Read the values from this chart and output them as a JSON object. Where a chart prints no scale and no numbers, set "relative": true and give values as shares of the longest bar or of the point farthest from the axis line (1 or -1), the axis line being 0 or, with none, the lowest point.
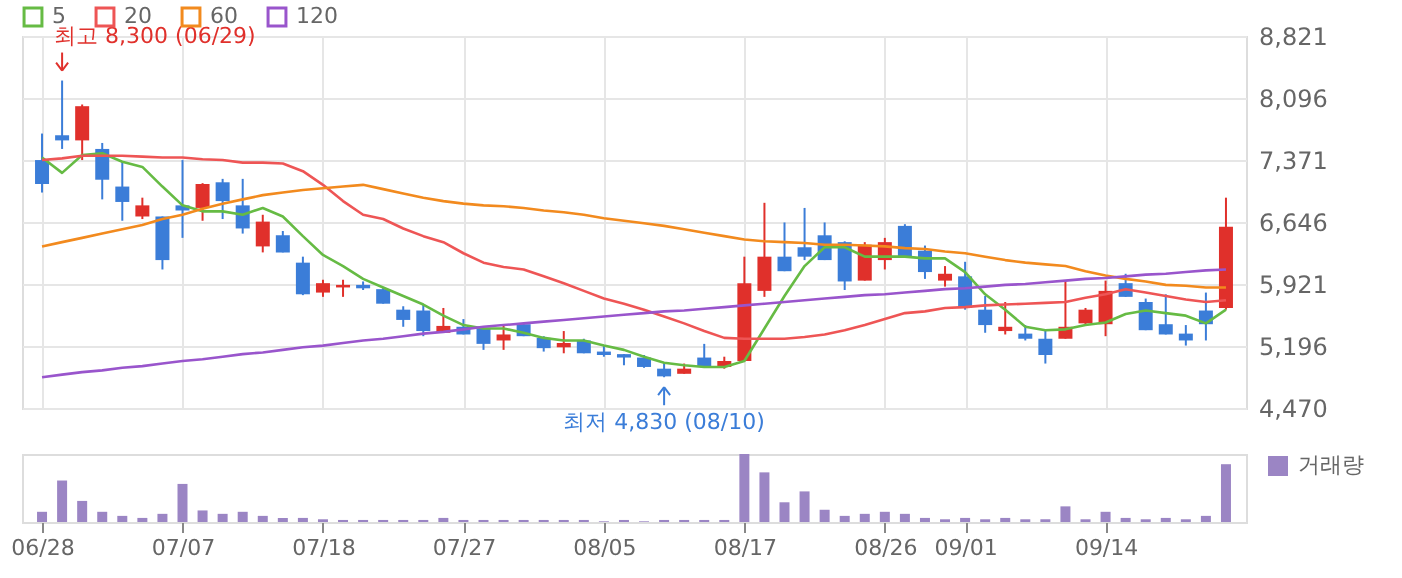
{
  "chart_data": [
    {
      "type": "candlestick",
      "ohlc": [
        [
          7370,
          7680,
          6990,
          7090
        ],
        [
          7660,
          8300,
          7500,
          7600
        ],
        [
          7600,
          8020,
          7370,
          8000
        ],
        [
          7500,
          7570,
          6910,
          7140
        ],
        [
          7060,
          7350,
          6660,
          6880
        ],
        [
          6710,
          6930,
          6680,
          6840
        ],
        [
          6710,
          6710,
          6090,
          6200
        ],
        [
          6840,
          7370,
          6460,
          6780
        ],
        [
          6810,
          7100,
          6660,
          7090
        ],
        [
          7110,
          7150,
          6680,
          6890
        ],
        [
          6840,
          7150,
          6510,
          6570
        ],
        [
          6360,
          6730,
          6290,
          6650
        ],
        [
          6490,
          6540,
          6290,
          6290
        ],
        [
          6170,
          6240,
          5790,
          5800
        ],
        [
          5820,
          5970,
          5770,
          5930
        ],
        [
          5880,
          5970,
          5770,
          5910
        ],
        [
          5910,
          5950,
          5850,
          5870
        ],
        [
          5860,
          5880,
          5690,
          5690
        ],
        [
          5620,
          5660,
          5420,
          5500
        ],
        [
          5610,
          5680,
          5310,
          5370
        ],
        [
          5350,
          5640,
          5350,
          5430
        ],
        [
          5420,
          5510,
          5330,
          5330
        ],
        [
          5400,
          5400,
          5150,
          5220
        ],
        [
          5260,
          5440,
          5150,
          5330
        ],
        [
          5450,
          5450,
          5310,
          5310
        ],
        [
          5290,
          5310,
          5130,
          5170
        ],
        [
          5180,
          5370,
          5110,
          5230
        ],
        [
          5260,
          5280,
          5110,
          5110
        ],
        [
          5130,
          5200,
          5070,
          5090
        ],
        [
          5100,
          5100,
          4970,
          5060
        ],
        [
          5060,
          5090,
          4940,
          4950
        ],
        [
          4930,
          5000,
          4830,
          4840
        ],
        [
          4870,
          4990,
          4870,
          4930
        ],
        [
          5060,
          5220,
          4950,
          4950
        ],
        [
          4950,
          5070,
          4930,
          5020
        ],
        [
          5020,
          6240,
          5020,
          5930
        ],
        [
          5840,
          6870,
          5770,
          6240
        ],
        [
          6240,
          6640,
          6070,
          6070
        ],
        [
          6350,
          6810,
          6200,
          6240
        ],
        [
          6490,
          6640,
          6200,
          6200
        ],
        [
          6410,
          6420,
          5850,
          5950
        ],
        [
          5960,
          6410,
          5960,
          6380
        ],
        [
          6200,
          6460,
          6090,
          6410
        ],
        [
          6600,
          6620,
          6240,
          6240
        ],
        [
          6310,
          6370,
          5980,
          6060
        ],
        [
          5960,
          6130,
          5890,
          6040
        ],
        [
          6010,
          6180,
          5620,
          5640
        ],
        [
          5620,
          5780,
          5350,
          5440
        ],
        [
          5370,
          5710,
          5330,
          5420
        ],
        [
          5340,
          5440,
          5260,
          5280
        ],
        [
          5280,
          5380,
          4990,
          5090
        ],
        [
          5280,
          5960,
          5280,
          5420
        ],
        [
          5460,
          5640,
          5450,
          5620
        ],
        [
          5450,
          5960,
          5310,
          5840
        ],
        [
          5930,
          6040,
          5770,
          5770
        ],
        [
          5710,
          5750,
          5380,
          5380
        ],
        [
          5450,
          5800,
          5330,
          5330
        ],
        [
          5340,
          5440,
          5200,
          5260
        ],
        [
          5610,
          5820,
          5260,
          5450
        ],
        [
          5640,
          6930,
          5620,
          6590
        ]
      ],
      "colors": [
        "#3b7dd8",
        "#3b7dd8",
        "#e0302b",
        "#3b7dd8",
        "#3b7dd8",
        "#e0302b",
        "#3b7dd8",
        "#3b7dd8",
        "#e0302b",
        "#3b7dd8",
        "#3b7dd8",
        "#e0302b",
        "#3b7dd8",
        "#3b7dd8",
        "#e0302b",
        "#e0302b",
        "#3b7dd8",
        "#3b7dd8",
        "#3b7dd8",
        "#3b7dd8",
        "#e0302b",
        "#3b7dd8",
        "#3b7dd8",
        "#e0302b",
        "#3b7dd8",
        "#3b7dd8",
        "#e0302b",
        "#3b7dd8",
        "#3b7dd8",
        "#3b7dd8",
        "#3b7dd8",
        "#3b7dd8",
        "#e0302b",
        "#3b7dd8",
        "#e0302b",
        "#e0302b",
        "#e0302b",
        "#3b7dd8",
        "#3b7dd8",
        "#3b7dd8",
        "#3b7dd8",
        "#e0302b",
        "#e0302b",
        "#3b7dd8",
        "#3b7dd8",
        "#e0302b",
        "#3b7dd8",
        "#3b7dd8",
        "#e0302b",
        "#3b7dd8",
        "#3b7dd8",
        "#e0302b",
        "#e0302b",
        "#e0302b",
        "#3b7dd8",
        "#3b7dd8",
        "#3b7dd8",
        "#3b7dd8",
        "#3b7dd8",
        "#e0302b"
      ],
      "series": [
        {
          "name": "5",
          "type": "line",
          "color": "#66bb44",
          "values": [
            7400,
            7220,
            7430,
            7450,
            7350,
            7290,
            7060,
            6840,
            6770,
            6770,
            6730,
            6810,
            6710,
            6480,
            6260,
            6130,
            5980,
            5880,
            5780,
            5680,
            5550,
            5440,
            5400,
            5400,
            5350,
            5290,
            5260,
            5260,
            5200,
            5150,
            5070,
            5000,
            4970,
            4950,
            4950,
            5020,
            5400,
            5780,
            6130,
            6350,
            6350,
            6240,
            6240,
            6240,
            6220,
            6220,
            6060,
            5800,
            5620,
            5420,
            5380,
            5390,
            5440,
            5470,
            5570,
            5610,
            5580,
            5550,
            5460,
            5620
          ]
        },
        {
          "name": "20",
          "type": "line",
          "color": "#ee5555",
          "values": [
            7370,
            7390,
            7420,
            7420,
            7420,
            7410,
            7400,
            7400,
            7380,
            7370,
            7340,
            7340,
            7330,
            7240,
            7080,
            6890,
            6730,
            6680,
            6570,
            6480,
            6410,
            6280,
            6170,
            6120,
            6090,
            6010,
            5930,
            5840,
            5750,
            5690,
            5620,
            5540,
            5460,
            5370,
            5290,
            5280,
            5280,
            5280,
            5300,
            5330,
            5380,
            5440,
            5510,
            5580,
            5600,
            5640,
            5650,
            5670,
            5680,
            5690,
            5700,
            5710,
            5760,
            5800,
            5860,
            5820,
            5780,
            5740,
            5710,
            5730
          ]
        },
        {
          "name": "60",
          "type": "line",
          "color": "#f28a1e",
          "values": [
            6360,
            6410,
            6460,
            6510,
            6560,
            6610,
            6680,
            6730,
            6800,
            6860,
            6910,
            6960,
            6990,
            7020,
            7040,
            7060,
            7080,
            7030,
            6980,
            6930,
            6890,
            6860,
            6840,
            6830,
            6810,
            6780,
            6760,
            6730,
            6690,
            6660,
            6630,
            6600,
            6560,
            6520,
            6480,
            6440,
            6420,
            6410,
            6400,
            6380,
            6380,
            6370,
            6360,
            6340,
            6330,
            6300,
            6280,
            6240,
            6200,
            6170,
            6150,
            6130,
            6070,
            6020,
            5980,
            5950,
            5910,
            5900,
            5880,
            5880
          ]
        },
        {
          "name": "120",
          "type": "line",
          "color": "#9955cc",
          "values": [
            4830,
            4860,
            4890,
            4910,
            4940,
            4960,
            4990,
            5020,
            5040,
            5070,
            5100,
            5120,
            5150,
            5180,
            5200,
            5230,
            5260,
            5280,
            5310,
            5340,
            5360,
            5390,
            5420,
            5440,
            5460,
            5480,
            5500,
            5520,
            5540,
            5560,
            5580,
            5600,
            5610,
            5630,
            5650,
            5670,
            5690,
            5710,
            5730,
            5750,
            5770,
            5790,
            5800,
            5820,
            5840,
            5860,
            5870,
            5890,
            5910,
            5920,
            5940,
            5960,
            5980,
            5990,
            6010,
            6030,
            6040,
            6060,
            6080,
            6090
          ]
        }
      ],
      "ylim": [
        4470,
        8821
      ],
      "yticks": [
        {
          "value": 4470,
          "label": "4,470"
        },
        {
          "value": 5196,
          "label": "5,196"
        },
        {
          "value": 5921,
          "label": "5,921"
        },
        {
          "value": 6646,
          "label": "6,646"
        },
        {
          "value": 7371,
          "label": "7,371"
        },
        {
          "value": 8096,
          "label": "8,096"
        },
        {
          "value": 8821,
          "label": "8,821"
        }
      ],
      "grid": true,
      "legend": "top left",
      "tick_labels": "y",
      "line_style": "solid",
      "marker": "none",
      "annotations": [
        "최고 8,300 (06/29)",
        "최저 4,830 (08/10)"
      ]
    },
    {
      "type": "bar",
      "categories": [
        "06/28",
        null,
        null,
        null,
        null,
        null,
        null,
        "07/07",
        null,
        null,
        null,
        null,
        null,
        null,
        "07/18",
        null,
        null,
        null,
        null,
        null,
        null,
        "07/27",
        null,
        null,
        null,
        null,
        null,
        null,
        "08/05",
        null,
        null,
        null,
        null,
        null,
        null,
        "08/17",
        null,
        null,
        null,
        null,
        null,
        null,
        "08/26",
        null,
        null,
        null,
        "09/01",
        null,
        null,
        null,
        null,
        null,
        null,
        "09/14",
        null,
        null,
        null,
        null,
        null,
        null
      ],
      "series": [
        {
          "name": "거래량",
          "color": "#9b85c4",
          "values": [
            0.15,
            0.61,
            0.31,
            0.15,
            0.09,
            0.06,
            0.12,
            0.56,
            0.17,
            0.12,
            0.15,
            0.09,
            0.06,
            0.06,
            0.04,
            0.03,
            0.03,
            0.03,
            0.03,
            0.03,
            0.06,
            0.03,
            0.03,
            0.03,
            0.03,
            0.03,
            0.03,
            0.03,
            0.01,
            0.03,
            0.01,
            0.03,
            0.03,
            0.03,
            0.03,
            1,
            0.73,
            0.29,
            0.45,
            0.18,
            0.09,
            0.12,
            0.15,
            0.12,
            0.06,
            0.04,
            0.06,
            0.04,
            0.06,
            0.04,
            0.04,
            0.23,
            0.04,
            0.15,
            0.06,
            0.04,
            0.06,
            0.04,
            0.09,
            0.85
          ]
        }
      ],
      "relative": true,
      "legend": "right",
      "tick_labels": "x"
    }
  ]
}
